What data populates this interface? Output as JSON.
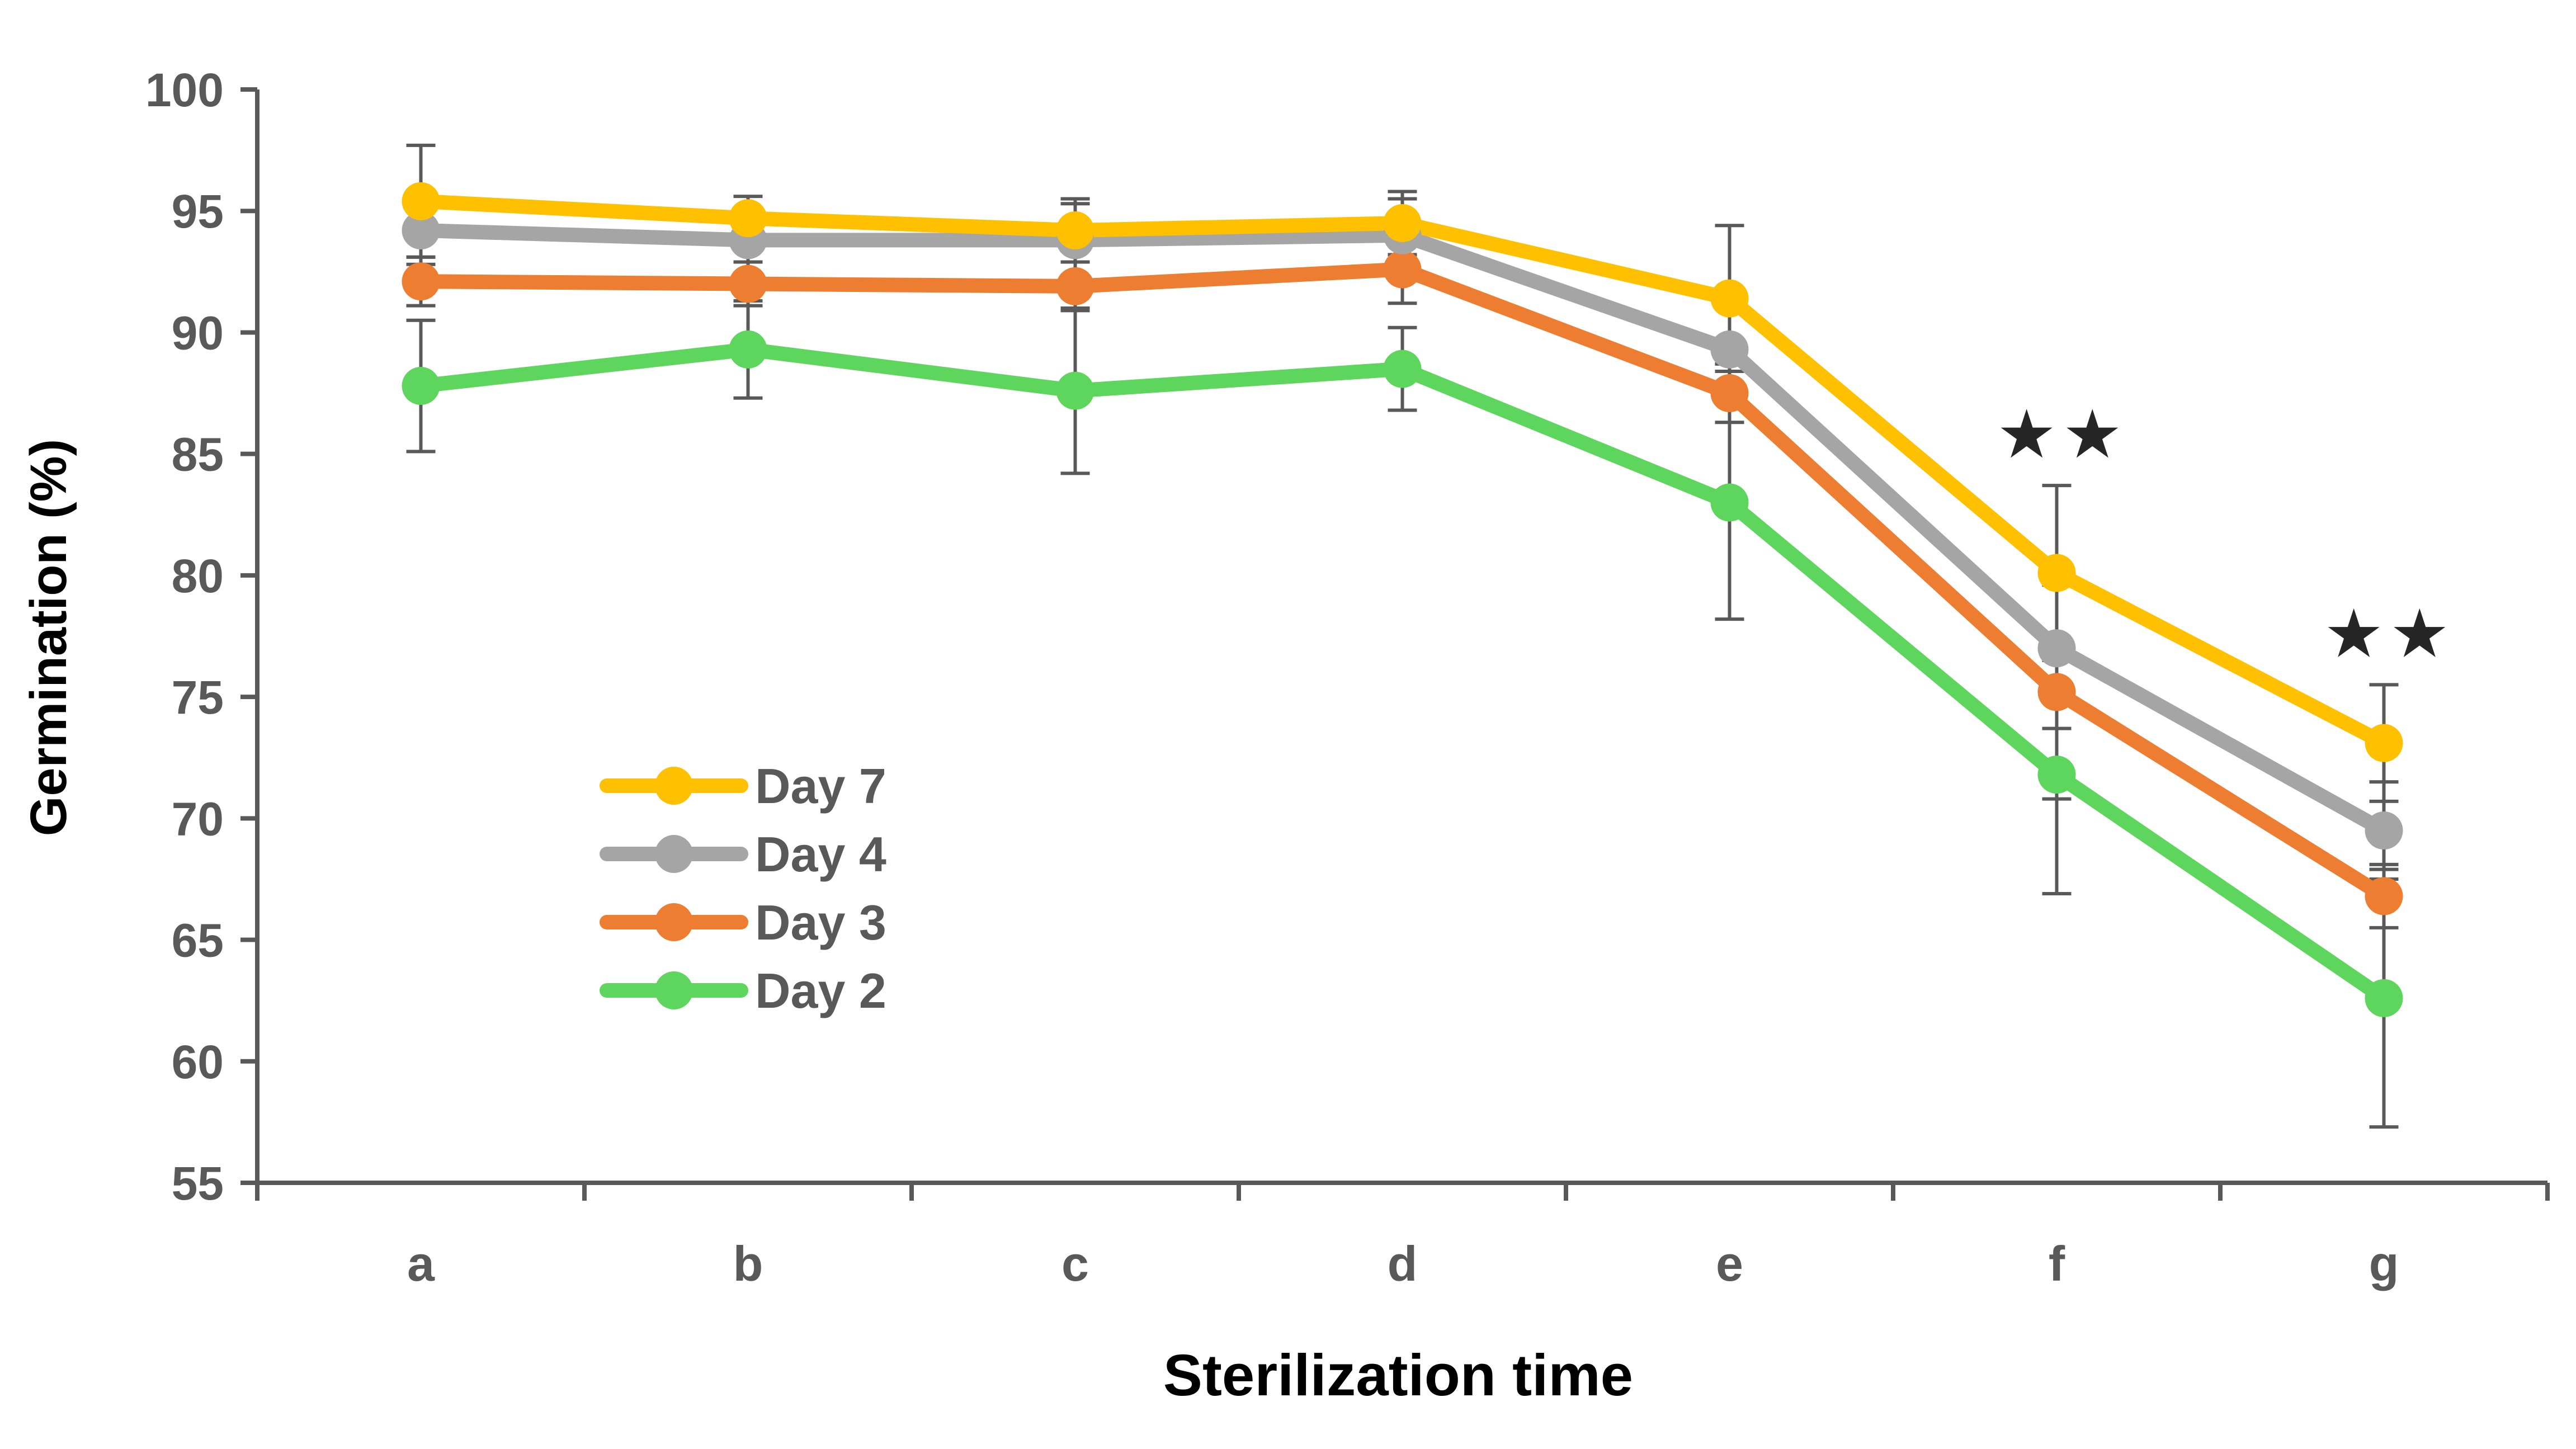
{
  "chart_data": {
    "type": "line",
    "title": "",
    "xlabel": "Sterilization time",
    "ylabel": "Germination  (%)",
    "categories": [
      "a",
      "b",
      "c",
      "d",
      "e",
      "f",
      "g"
    ],
    "ylim": [
      55,
      100
    ],
    "yticks": [
      55,
      60,
      65,
      70,
      75,
      80,
      85,
      90,
      95,
      100
    ],
    "grid": false,
    "legend_position": "lower-left inside plot",
    "series": [
      {
        "name": "Day 7",
        "color": "#FFC000",
        "values": [
          95.4,
          94.7,
          94.2,
          94.5,
          91.4,
          80.1,
          73.1
        ],
        "errors": [
          2.3,
          0.9,
          1.3,
          1.3,
          3.0,
          3.6,
          2.4
        ]
      },
      {
        "name": "Day 4",
        "color": "#A5A5A5",
        "values": [
          94.2,
          93.8,
          93.8,
          94.0,
          89.3,
          77.0,
          69.5
        ],
        "errors": [
          1.4,
          0.9,
          1.5,
          1.5,
          1.7,
          3.3,
          2.0
        ]
      },
      {
        "name": "Day 3",
        "color": "#ED7D31",
        "values": [
          92.1,
          92.0,
          91.9,
          92.6,
          87.5,
          75.2,
          66.8
        ],
        "errors": [
          1.0,
          0.9,
          1.0,
          1.4,
          1.2,
          4.4,
          1.3
        ]
      },
      {
        "name": "Day 2",
        "color": "#5ED65E",
        "values": [
          87.8,
          89.3,
          87.6,
          88.5,
          83.0,
          71.8,
          62.6
        ],
        "errors": [
          2.7,
          2.0,
          3.4,
          1.7,
          4.8,
          4.9,
          5.3
        ]
      }
    ],
    "annotations": [
      {
        "category": "f",
        "text": "★★"
      },
      {
        "category": "g",
        "text": "★★"
      }
    ],
    "error_bar_color": "#595959"
  }
}
